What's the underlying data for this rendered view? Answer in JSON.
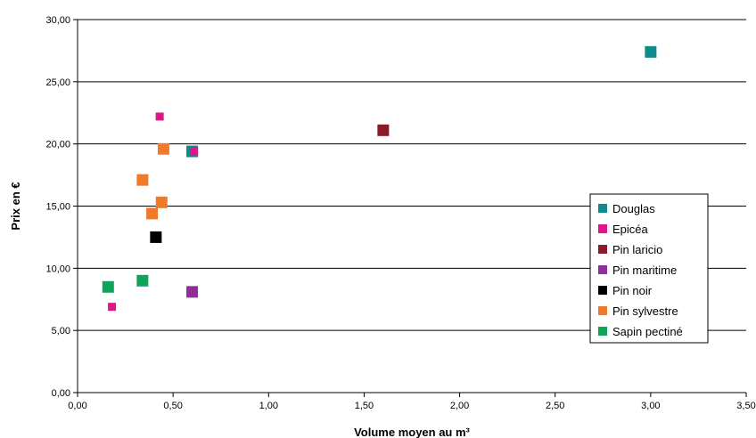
{
  "chart_data": {
    "type": "scatter",
    "xlabel": "Volume moyen au m³",
    "ylabel": "Prix en €",
    "xlim": [
      0,
      3.5
    ],
    "ylim": [
      0,
      30
    ],
    "x_ticks": [
      "0,00",
      "0,50",
      "1,00",
      "1,50",
      "2,00",
      "2,50",
      "3,00",
      "3,50"
    ],
    "y_ticks": [
      "0,00",
      "5,00",
      "10,00",
      "15,00",
      "20,00",
      "25,00",
      "30,00"
    ],
    "grid": "horizontal",
    "legend_position": "right",
    "series": [
      {
        "name": "Douglas",
        "color": "#0e8a8a",
        "points": [
          [
            3.0,
            27.4
          ],
          [
            0.6,
            19.4
          ]
        ]
      },
      {
        "name": "Epicéa",
        "color": "#e0158c",
        "points": [
          [
            0.43,
            22.2
          ],
          [
            0.61,
            19.4
          ],
          [
            0.18,
            6.9
          ]
        ]
      },
      {
        "name": "Pin laricio",
        "color": "#8b1a2b",
        "points": [
          [
            1.6,
            21.1
          ]
        ]
      },
      {
        "name": "Pin maritime",
        "color": "#8e2f98",
        "points": [
          [
            0.6,
            8.1
          ]
        ]
      },
      {
        "name": "Pin noir",
        "color": "#000000",
        "points": [
          [
            0.41,
            12.5
          ]
        ]
      },
      {
        "name": "Pin sylvestre",
        "color": "#f07a2a",
        "points": [
          [
            0.45,
            19.6
          ],
          [
            0.34,
            17.1
          ],
          [
            0.44,
            15.3
          ],
          [
            0.39,
            14.4
          ]
        ]
      },
      {
        "name": "Sapin pectiné",
        "color": "#12a35a",
        "points": [
          [
            0.16,
            8.5
          ],
          [
            0.34,
            9.0
          ]
        ]
      }
    ],
    "small_marker_series": [
      "Epicéa"
    ]
  }
}
